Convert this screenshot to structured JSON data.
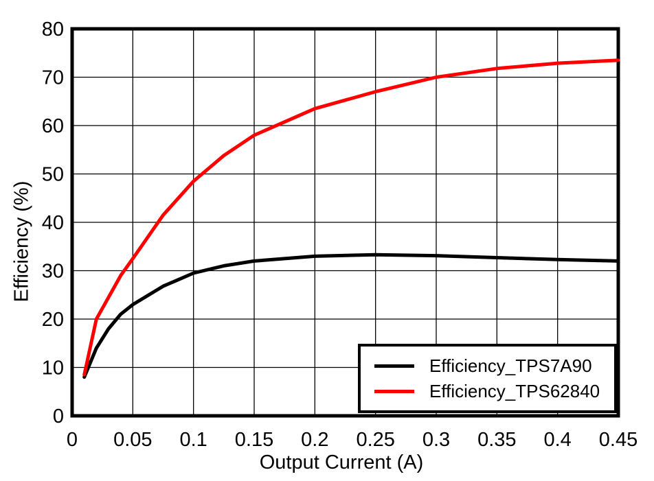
{
  "chart_data": {
    "type": "line",
    "title": "",
    "xlabel": "Output Current (A)",
    "ylabel": "Efficiency (%)",
    "xlim": [
      0,
      0.45
    ],
    "ylim": [
      0,
      80
    ],
    "x_ticks": [
      0,
      0.05,
      0.1,
      0.15,
      0.2,
      0.25,
      0.3,
      0.35,
      0.4,
      0.45
    ],
    "x_tick_labels": [
      "0",
      "0.05",
      "0.1",
      "0.15",
      "0.2",
      "0.25",
      "0.3",
      "0.35",
      "0.4",
      "0.45"
    ],
    "y_ticks": [
      0,
      10,
      20,
      30,
      40,
      50,
      60,
      70,
      80
    ],
    "y_tick_labels": [
      "0",
      "10",
      "20",
      "30",
      "40",
      "50",
      "60",
      "70",
      "80"
    ],
    "grid": true,
    "legend_position": "bottom-right",
    "background_color": "#ffffff",
    "grid_color": "#000000",
    "frame_color": "#000000",
    "series": [
      {
        "name": "Efficiency_TPS7A90",
        "color": "#000000",
        "x": [
          0.01,
          0.02,
          0.03,
          0.04,
          0.05,
          0.075,
          0.1,
          0.125,
          0.15,
          0.2,
          0.25,
          0.3,
          0.35,
          0.4,
          0.45
        ],
        "y": [
          8.0,
          14.0,
          18.0,
          21.0,
          23.0,
          26.8,
          29.5,
          31.0,
          32.0,
          33.0,
          33.3,
          33.1,
          32.7,
          32.3,
          32.0
        ]
      },
      {
        "name": "Efficiency_TPS62840",
        "color": "#FF0000",
        "x": [
          0.01,
          0.02,
          0.03,
          0.04,
          0.05,
          0.075,
          0.1,
          0.125,
          0.15,
          0.2,
          0.25,
          0.3,
          0.35,
          0.4,
          0.45
        ],
        "y": [
          8.5,
          20.0,
          24.5,
          29.0,
          32.5,
          41.5,
          48.5,
          53.8,
          58.0,
          63.5,
          67.0,
          70.0,
          71.8,
          72.9,
          73.5
        ]
      }
    ]
  }
}
